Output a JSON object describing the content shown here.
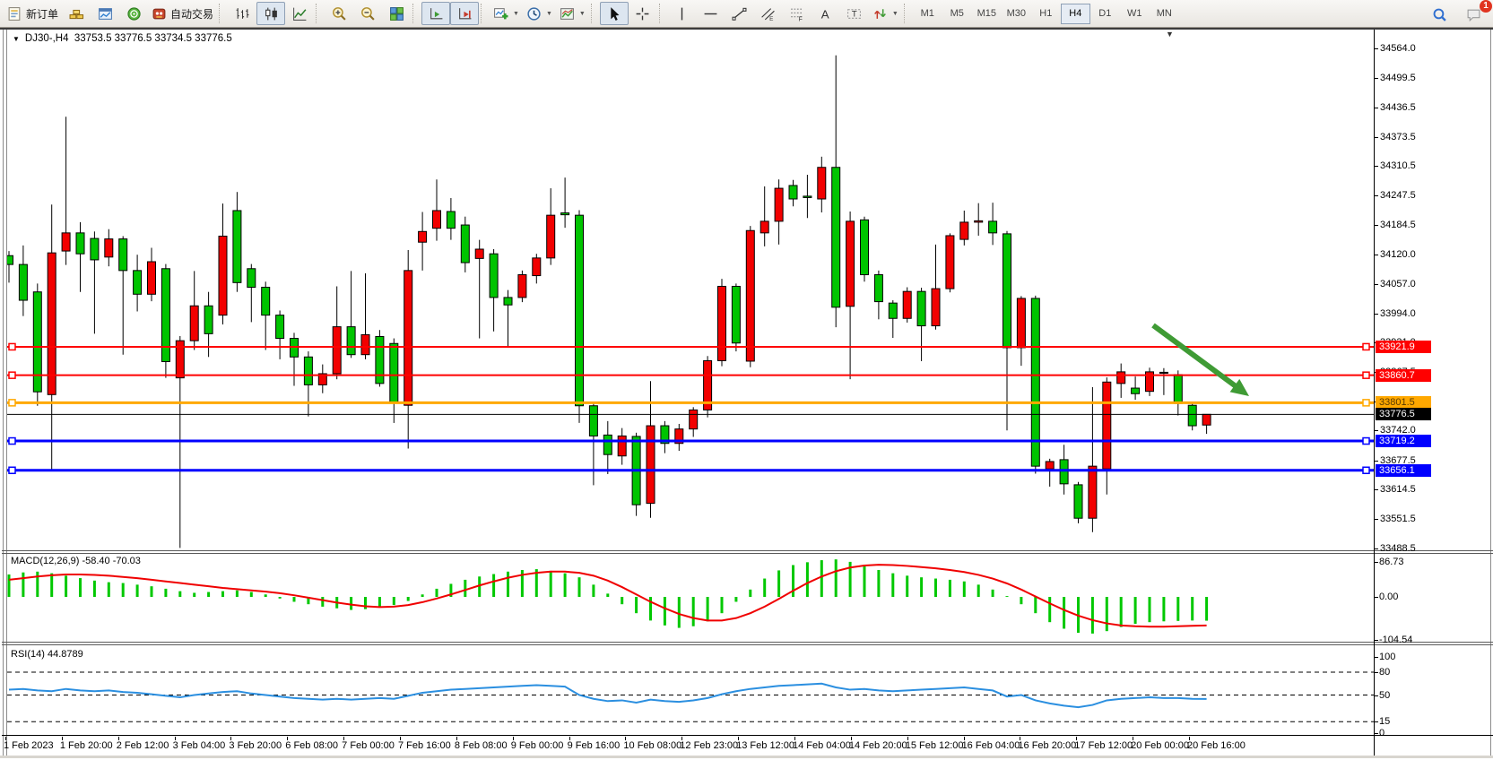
{
  "toolbar": {
    "groups": [
      {
        "items": [
          {
            "name": "new-order",
            "icon": "new-order",
            "label": "新订单"
          },
          {
            "name": "gold-bars",
            "icon": "gold-bars"
          },
          {
            "name": "market-watch",
            "icon": "market-watch"
          },
          {
            "name": "signals",
            "icon": "signals"
          },
          {
            "name": "auto-trading",
            "icon": "auto-trading",
            "label": "自动交易"
          }
        ]
      },
      {
        "items": [
          {
            "name": "bar-chart",
            "icon": "bar-chart"
          },
          {
            "name": "candlestick-chart",
            "icon": "candlestick-chart",
            "active": true
          },
          {
            "name": "line-chart",
            "icon": "line-chart"
          }
        ]
      },
      {
        "items": [
          {
            "name": "zoom-in",
            "icon": "zoom-in"
          },
          {
            "name": "zoom-out",
            "icon": "zoom-out"
          },
          {
            "name": "tile-windows",
            "icon": "tile-windows"
          }
        ]
      },
      {
        "items": [
          {
            "name": "auto-scroll",
            "icon": "auto-scroll",
            "active": true
          },
          {
            "name": "chart-shift",
            "icon": "chart-shift",
            "active": true
          }
        ]
      },
      {
        "items": [
          {
            "name": "indicators",
            "icon": "indicators",
            "caret": true
          },
          {
            "name": "periods",
            "icon": "periods",
            "caret": true
          },
          {
            "name": "templates",
            "icon": "templates",
            "caret": true
          }
        ]
      },
      {
        "items": [
          {
            "name": "cursor",
            "icon": "cursor",
            "active": true
          },
          {
            "name": "crosshair",
            "icon": "crosshair"
          }
        ]
      },
      {
        "items": [
          {
            "name": "vertical-line",
            "icon": "vertical-line"
          },
          {
            "name": "horizontal-line",
            "icon": "horizontal-line"
          },
          {
            "name": "trendline",
            "icon": "trendline"
          },
          {
            "name": "equidistant-channel",
            "icon": "equidistant-channel"
          },
          {
            "name": "fibonacci",
            "icon": "fibonacci"
          },
          {
            "name": "text",
            "icon": "text"
          },
          {
            "name": "text-label",
            "icon": "text-label"
          },
          {
            "name": "arrows",
            "icon": "arrows",
            "caret": true
          }
        ]
      }
    ],
    "timeframes": [
      {
        "label": "M1"
      },
      {
        "label": "M5"
      },
      {
        "label": "M15"
      },
      {
        "label": "M30"
      },
      {
        "label": "H1"
      },
      {
        "label": "H4",
        "active": true
      },
      {
        "label": "D1"
      },
      {
        "label": "W1"
      },
      {
        "label": "MN"
      }
    ],
    "right": [
      {
        "name": "search",
        "icon": "search"
      },
      {
        "name": "community",
        "icon": "community",
        "badge": "1"
      }
    ]
  },
  "chart": {
    "dropdown_marker": "▼",
    "symbol": "DJ30-,H4",
    "ohlc_text": "33753.5 33776.5 33734.5 33776.5",
    "price_axis_ticks": [
      "34564.0",
      "34499.5",
      "34436.5",
      "34373.5",
      "34310.5",
      "34247.5",
      "34184.5",
      "34120.0",
      "34057.0",
      "33994.0",
      "33931.0",
      "33867.5",
      "33804.5",
      "33742.0",
      "33677.5",
      "33614.5",
      "33551.5",
      "33488.5"
    ],
    "levels": [
      {
        "price": 33921.9,
        "label": "33921.9",
        "color": "#ff0000",
        "text_color": "#ffffff",
        "width": 2
      },
      {
        "price": 33860.7,
        "label": "33860.7",
        "color": "#ff0000",
        "text_color": "#ffffff",
        "width": 2
      },
      {
        "price": 33801.5,
        "label": "33801.5",
        "color": "#ffa800",
        "text_color": "#5a3a00",
        "width": 3
      },
      {
        "price": 33719.2,
        "label": "33719.2",
        "color": "#0000ff",
        "text_color": "#ffffff",
        "width": 3
      },
      {
        "price": 33656.1,
        "label": "33656.1",
        "color": "#0000ff",
        "text_color": "#ffffff",
        "width": 3
      }
    ],
    "current_price": {
      "price": 33776.5,
      "label": "33776.5",
      "color": "#000000",
      "text_color": "#ffffff"
    },
    "colors": {
      "up": "#f20000",
      "down": "#00c400",
      "outline": "#000000",
      "arrow": "#3f9b35"
    }
  },
  "chart_data": {
    "type": "candlestick",
    "symbol": "DJ30-,H4",
    "timeframe": "H4",
    "y_range": [
      33488.5,
      34564.0
    ],
    "x_labels": [
      "1 Feb 2023",
      "1 Feb 20:00",
      "2 Feb 12:00",
      "3 Feb 04:00",
      "3 Feb 20:00",
      "6 Feb 08:00",
      "7 Feb 00:00",
      "7 Feb 16:00",
      "8 Feb 08:00",
      "9 Feb 00:00",
      "9 Feb 16:00",
      "10 Feb 08:00",
      "12 Feb 23:00",
      "13 Feb 12:00",
      "14 Feb 04:00",
      "14 Feb 20:00",
      "15 Feb 12:00",
      "16 Feb 04:00",
      "16 Feb 20:00",
      "17 Feb 12:00",
      "20 Feb 00:00",
      "20 Feb 16:00"
    ],
    "ohlc": [
      [
        34118,
        34128,
        34060,
        34099
      ],
      [
        34099,
        34140,
        33988,
        34022
      ],
      [
        34040,
        34058,
        33795,
        33825
      ],
      [
        33819,
        34228,
        33656,
        34124
      ],
      [
        34128,
        34417,
        34098,
        34167
      ],
      [
        34167,
        34190,
        34040,
        34122
      ],
      [
        34155,
        34170,
        33950,
        34109
      ],
      [
        34115,
        34175,
        34095,
        34154
      ],
      [
        34154,
        34160,
        33905,
        34086
      ],
      [
        34086,
        34120,
        33998,
        34035
      ],
      [
        34035,
        34135,
        34020,
        34105
      ],
      [
        34090,
        34100,
        33855,
        33890
      ],
      [
        33855,
        33945,
        33489,
        33935
      ],
      [
        33935,
        34085,
        33915,
        34010
      ],
      [
        34010,
        34040,
        33900,
        33950
      ],
      [
        33990,
        34230,
        33970,
        34160
      ],
      [
        34215,
        34255,
        34040,
        34060
      ],
      [
        34090,
        34100,
        33975,
        34050
      ],
      [
        34050,
        34062,
        33915,
        33990
      ],
      [
        33990,
        34000,
        33895,
        33940
      ],
      [
        33940,
        33952,
        33838,
        33900
      ],
      [
        33900,
        33912,
        33772,
        33840
      ],
      [
        33840,
        33884,
        33822,
        33864
      ],
      [
        33864,
        34052,
        33852,
        33965
      ],
      [
        33965,
        34085,
        33898,
        33905
      ],
      [
        33905,
        34080,
        33895,
        33948
      ],
      [
        33944,
        33958,
        33836,
        33843
      ],
      [
        33929,
        33940,
        33758,
        33803
      ],
      [
        33796,
        34130,
        33703,
        34086
      ],
      [
        34147,
        34212,
        34086,
        34170
      ],
      [
        34177,
        34282,
        34150,
        34215
      ],
      [
        34213,
        34242,
        34152,
        34177
      ],
      [
        34184,
        34202,
        34082,
        34103
      ],
      [
        34112,
        34152,
        33940,
        34132
      ],
      [
        34122,
        34132,
        33955,
        34028
      ],
      [
        34028,
        34044,
        33922,
        34012
      ],
      [
        34028,
        34086,
        34018,
        34077
      ],
      [
        34075,
        34122,
        34058,
        34113
      ],
      [
        34113,
        34263,
        34098,
        34205
      ],
      [
        34210,
        34286,
        34178,
        34206
      ],
      [
        34205,
        34216,
        33758,
        33795
      ],
      [
        33795,
        33802,
        33624,
        33730
      ],
      [
        33732,
        33762,
        33648,
        33690
      ],
      [
        33687,
        33747,
        33668,
        33730
      ],
      [
        33729,
        33737,
        33558,
        33582
      ],
      [
        33585,
        33848,
        33554,
        33752
      ],
      [
        33752,
        33762,
        33693,
        33714
      ],
      [
        33714,
        33756,
        33698,
        33745
      ],
      [
        33745,
        33792,
        33728,
        33786
      ],
      [
        33786,
        33902,
        33770,
        33892
      ],
      [
        33892,
        34068,
        33880,
        34052
      ],
      [
        34052,
        34058,
        33912,
        33930
      ],
      [
        33891,
        34182,
        33878,
        34172
      ],
      [
        34167,
        34267,
        34138,
        34192
      ],
      [
        34192,
        34282,
        34142,
        34263
      ],
      [
        34269,
        34281,
        34224,
        34240
      ],
      [
        34246,
        34292,
        34199,
        34243
      ],
      [
        34240,
        34331,
        34211,
        34308
      ],
      [
        34308,
        34549,
        33964,
        34007
      ],
      [
        34009,
        34213,
        33852,
        34192
      ],
      [
        34195,
        34202,
        34062,
        34077
      ],
      [
        34077,
        34086,
        33981,
        34019
      ],
      [
        34016,
        34022,
        33941,
        33983
      ],
      [
        33983,
        34050,
        33974,
        34041
      ],
      [
        34041,
        34049,
        33891,
        33967
      ],
      [
        33967,
        34142,
        33959,
        34047
      ],
      [
        34047,
        34166,
        34039,
        34161
      ],
      [
        34153,
        34215,
        34140,
        34190
      ],
      [
        34190,
        34231,
        34161,
        34193
      ],
      [
        34192,
        34232,
        34141,
        34167
      ],
      [
        34165,
        34171,
        33742,
        33920
      ],
      [
        33920,
        34031,
        33881,
        34026
      ],
      [
        34026,
        34032,
        33649,
        33665
      ],
      [
        33659,
        33681,
        33621,
        33675
      ],
      [
        33679,
        33711,
        33604,
        33627
      ],
      [
        33625,
        33631,
        33542,
        33553
      ],
      [
        33553,
        33835,
        33523,
        33665
      ],
      [
        33659,
        33856,
        33604,
        33846
      ],
      [
        33843,
        33886,
        33812,
        33868
      ],
      [
        33833,
        33858,
        33808,
        33821
      ],
      [
        33826,
        33877,
        33816,
        33868
      ],
      [
        33867,
        33876,
        33818,
        33865
      ],
      [
        33862,
        33871,
        33774,
        33800
      ],
      [
        33796,
        33801,
        33742,
        33752
      ],
      [
        33753.5,
        33776.5,
        33734.5,
        33776.5
      ]
    ],
    "indicators": {
      "macd": {
        "label": "MACD(12,26,9) -58.40 -70.03",
        "axis_labels": [
          "86.73",
          "0.00",
          "-104.54"
        ],
        "range": [
          -104.54,
          86.73
        ],
        "histogram": [
          55,
          60,
          62,
          58,
          52,
          46,
          40,
          36,
          34,
          30,
          26,
          20,
          14,
          10,
          12,
          14,
          16,
          12,
          6,
          -4,
          -12,
          -18,
          -24,
          -28,
          -32,
          -30,
          -26,
          -20,
          -10,
          6,
          20,
          32,
          42,
          50,
          56,
          62,
          66,
          68,
          64,
          58,
          48,
          30,
          8,
          -18,
          -40,
          -58,
          -70,
          -76,
          -72,
          -60,
          -40,
          -12,
          18,
          45,
          65,
          78,
          85,
          90,
          92,
          86,
          76,
          66,
          58,
          52,
          48,
          45,
          42,
          38,
          30,
          18,
          2,
          -18,
          -40,
          -62,
          -78,
          -88,
          -90,
          -84,
          -74,
          -66,
          -62,
          -60,
          -59,
          -58,
          -58.4
        ],
        "signal": [
          42,
          46,
          50,
          53,
          55,
          55,
          54,
          52,
          49,
          46,
          42,
          38,
          34,
          30,
          26,
          22,
          19,
          16,
          13,
          9,
          4,
          -2,
          -8,
          -14,
          -19,
          -23,
          -25,
          -24,
          -20,
          -13,
          -4,
          6,
          17,
          28,
          38,
          47,
          54,
          59,
          62,
          62,
          59,
          52,
          40,
          24,
          6,
          -12,
          -28,
          -42,
          -52,
          -58,
          -58,
          -52,
          -40,
          -24,
          -5,
          15,
          34,
          50,
          63,
          72,
          77,
          79,
          78,
          76,
          73,
          70,
          66,
          61,
          54,
          45,
          33,
          18,
          1,
          -16,
          -32,
          -46,
          -57,
          -65,
          -70,
          -72,
          -73,
          -73,
          -72,
          -71,
          -70.03
        ]
      },
      "rsi": {
        "label": "RSI(14) 44.8789",
        "axis_labels": [
          "100",
          "80",
          "50",
          "15",
          "0"
        ],
        "range": [
          0,
          100
        ],
        "level_lines": [
          80,
          50,
          15
        ],
        "values": [
          57,
          58,
          56,
          55,
          58,
          56,
          55,
          56,
          54,
          53,
          51,
          49,
          47,
          50,
          52,
          54,
          55,
          52,
          50,
          48,
          46,
          45,
          44,
          45,
          44,
          45,
          46,
          45,
          49,
          53,
          55,
          57,
          58,
          59,
          60,
          61,
          62,
          63,
          62,
          61,
          50,
          45,
          42,
          43,
          40,
          44,
          42,
          41,
          43,
          46,
          51,
          55,
          58,
          60,
          62,
          63,
          64,
          65,
          60,
          57,
          58,
          56,
          55,
          56,
          57,
          58,
          59,
          60,
          58,
          56,
          48,
          50,
          43,
          39,
          36,
          34,
          37,
          43,
          45,
          46,
          47,
          46,
          46,
          45,
          44.88
        ]
      }
    }
  }
}
